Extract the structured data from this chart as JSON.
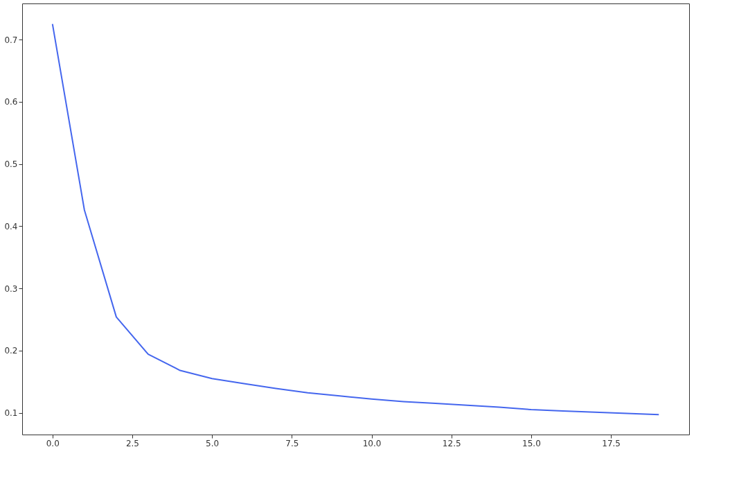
{
  "chart_data": {
    "type": "line",
    "x": [
      0,
      1,
      2,
      3,
      4,
      5,
      6,
      7,
      8,
      9,
      10,
      11,
      12,
      13,
      14,
      15,
      16,
      17,
      18,
      19
    ],
    "series": [
      {
        "color": "#4466ee",
        "values": [
          0.725,
          0.426,
          0.254,
          0.194,
          0.168,
          0.155,
          0.147,
          0.139,
          0.132,
          0.127,
          0.122,
          0.118,
          0.115,
          0.112,
          0.109,
          0.105,
          0.103,
          0.101,
          0.099,
          0.097
        ]
      }
    ],
    "xlim": [
      -0.95,
      19.95
    ],
    "xticks": [
      {
        "value": 0,
        "label": "0.0"
      },
      2.5,
      {
        "value": 5,
        "label": "5.0"
      },
      7.5,
      {
        "value": 10,
        "label": "10.0"
      },
      12.5,
      {
        "value": 15,
        "label": "15.0"
      },
      17.5
    ],
    "ylim": [
      0.065,
      0.758
    ],
    "yticks": [
      0.1,
      0.2,
      0.3,
      0.4,
      0.5,
      0.6,
      0.7
    ],
    "grid": false,
    "marker": "none",
    "line_style": "solid"
  }
}
